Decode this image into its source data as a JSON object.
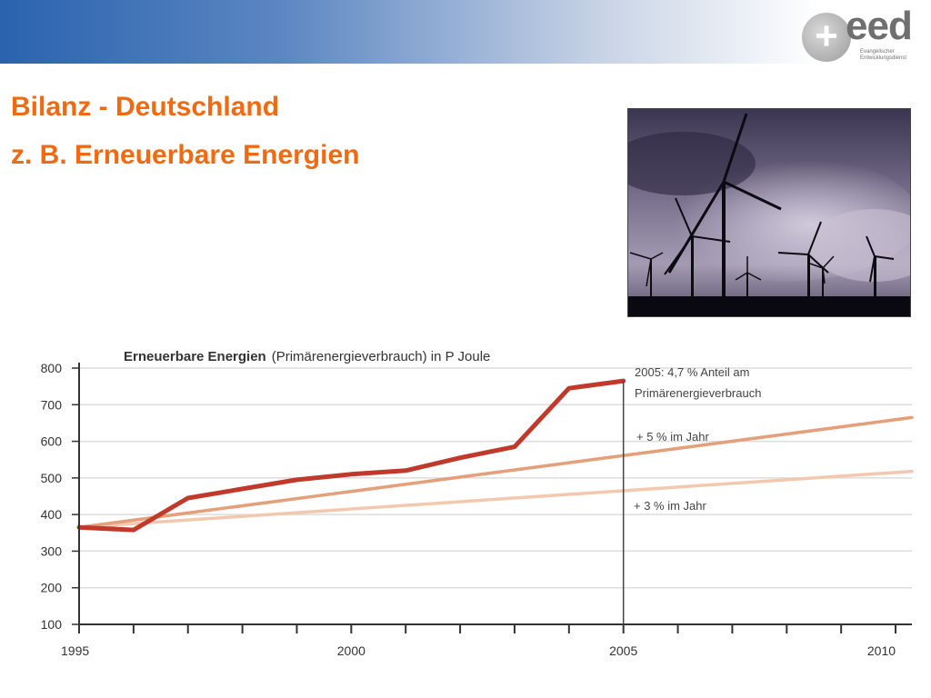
{
  "slide": {
    "title_line1": "Bilanz - Deutschland",
    "title_line2": "z. B. Erneuerbare Energien"
  },
  "logo": {
    "icon": "eed-plus-logo-icon",
    "text": "eed",
    "subtext": "Evangelischer Entwicklungsdienst"
  },
  "photo": {
    "icon": "wind-turbines-photo"
  },
  "colors": {
    "title": "#f06a12",
    "header_band": "#2a63ae",
    "actual_line": "#c0392b",
    "growth_5": "#e3a07a",
    "growth_3": "#f3c8ae",
    "axis": "#333333",
    "grid": "#dddddd"
  },
  "chart_data": {
    "type": "line",
    "title_bold": "Erneuerbare Energien",
    "title_rest": "(Primärenergieverbrauch) in P Joule",
    "x_ticks": [
      "1995",
      "2000",
      "2005",
      "2010"
    ],
    "y_ticks": [
      "800",
      "700",
      "600",
      "500",
      "400",
      "300",
      "200",
      "100"
    ],
    "xlim": [
      1995,
      2010.3
    ],
    "ylim": [
      100,
      800
    ],
    "grid": true,
    "series": [
      {
        "key": "actual",
        "x": [
          1995,
          1996,
          1997,
          1998,
          1999,
          2000,
          2001,
          2002,
          2003,
          2004,
          2005
        ],
        "values": [
          365,
          358,
          445,
          470,
          495,
          510,
          520,
          555,
          585,
          745,
          765
        ]
      },
      {
        "key": "growth_5",
        "x": [
          1995,
          2010.3
        ],
        "values": [
          365,
          665
        ]
      },
      {
        "key": "growth_3",
        "x": [
          1995,
          2010.3
        ],
        "values": [
          365,
          518
        ]
      }
    ],
    "marker_year": 2005,
    "annotations": {
      "line1": "2005: 4,7 % Anteil am",
      "line2": "Primärenergieverbrauch",
      "growth_5_label": "+ 5 % im Jahr",
      "growth_3_label": "+ 3 % im Jahr"
    }
  }
}
